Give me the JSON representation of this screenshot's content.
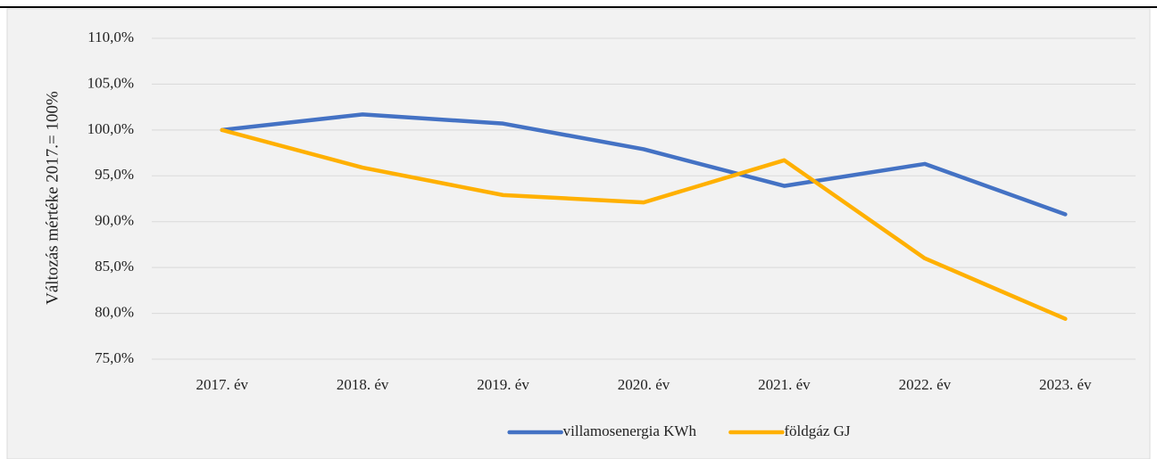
{
  "chart_data": {
    "type": "line",
    "ylabel": "Változás mértéke 2017.= 100%",
    "categories": [
      "2017. év",
      "2018. év",
      "2019. év",
      "2020. év",
      "2021. év",
      "2022. év",
      "2023. év"
    ],
    "series": [
      {
        "name": "villamosenergia KWh",
        "color": "#4472c4",
        "values": [
          100,
          101.7,
          100.7,
          97.9,
          93.9,
          96.3,
          90.8
        ]
      },
      {
        "name": "földgáz GJ",
        "color": "#ffb000",
        "values": [
          100,
          95.9,
          92.9,
          92.1,
          96.7,
          86.0,
          79.4
        ]
      }
    ],
    "ylim": [
      75,
      110
    ],
    "yticks": [
      {
        "value": 75,
        "label": "75,0%"
      },
      {
        "value": 80,
        "label": "80,0%"
      },
      {
        "value": 85,
        "label": "85,0%"
      },
      {
        "value": 90,
        "label": "90,0%"
      },
      {
        "value": 95,
        "label": "95,0%"
      },
      {
        "value": 100,
        "label": "100,0%"
      },
      {
        "value": 105,
        "label": "105,0%"
      },
      {
        "value": 110,
        "label": "110,0%"
      }
    ],
    "grid": true,
    "legend": "bottom"
  }
}
